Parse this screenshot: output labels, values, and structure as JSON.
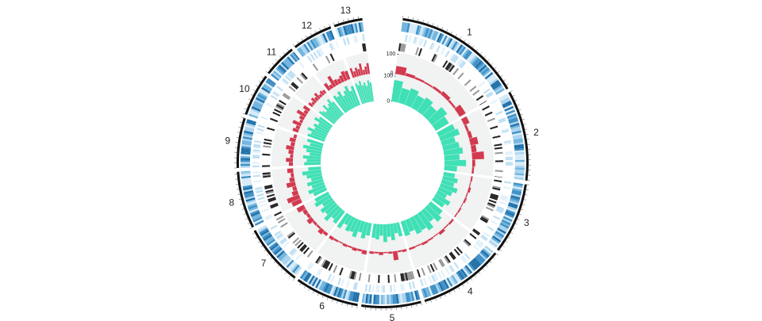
{
  "chart_data": {
    "type": "circos",
    "chromosomes": [
      "1",
      "2",
      "3",
      "4",
      "5",
      "6",
      "7",
      "8",
      "9",
      "10",
      "11",
      "12",
      "13"
    ],
    "lengths": [
      54,
      38,
      30,
      36,
      25,
      27,
      26,
      24,
      21,
      18,
      14,
      17,
      12
    ],
    "series": [
      {
        "color": "#d23a4f",
        "ylim": [
          0,
          100
        ],
        "yticks": [
          0,
          100
        ],
        "values": [
          [
            40,
            15,
            10,
            8,
            12,
            20,
            10,
            35
          ],
          [
            30,
            12,
            18,
            40,
            25,
            60,
            15,
            10
          ],
          [
            8,
            5,
            12,
            6,
            10,
            4,
            8,
            6
          ],
          [
            10,
            6,
            15,
            5,
            8,
            12,
            6,
            10
          ],
          [
            12,
            8,
            45,
            10,
            6,
            15,
            8,
            12
          ],
          [
            20,
            10,
            15,
            8,
            12,
            6,
            10,
            15
          ],
          [
            15,
            25,
            10,
            12,
            30,
            15,
            20,
            40
          ],
          [
            50,
            65,
            30,
            20,
            45,
            25,
            15,
            30
          ],
          [
            20,
            35,
            15,
            25,
            40,
            20,
            30,
            15
          ],
          [
            30,
            20,
            45,
            15,
            25,
            50,
            20,
            35
          ],
          [
            25,
            15,
            30,
            20,
            35,
            15,
            25,
            20
          ],
          [
            40,
            20,
            60,
            30,
            25,
            35,
            50,
            45
          ],
          [
            50,
            30,
            45,
            35,
            60,
            25,
            40,
            55
          ]
        ]
      },
      {
        "color": "#3fe0b5",
        "ylim": [
          0,
          100
        ],
        "yticks": [
          0,
          100
        ],
        "values": [
          [
            85,
            60,
            70,
            55,
            65,
            50,
            75,
            60
          ],
          [
            70,
            80,
            55,
            65,
            75,
            60,
            85,
            50
          ],
          [
            45,
            60,
            50,
            70,
            55,
            40,
            65,
            50
          ],
          [
            60,
            75,
            55,
            80,
            65,
            70,
            50,
            60
          ],
          [
            55,
            40,
            65,
            50,
            70,
            45,
            60,
            55
          ],
          [
            50,
            65,
            45,
            70,
            55,
            60,
            40,
            65
          ],
          [
            60,
            50,
            75,
            55,
            65,
            45,
            70,
            60
          ],
          [
            55,
            70,
            50,
            65,
            45,
            60,
            75,
            50
          ],
          [
            65,
            55,
            70,
            45,
            60,
            75,
            50,
            65
          ],
          [
            70,
            60,
            80,
            55,
            65,
            50,
            75,
            60
          ],
          [
            75,
            65,
            55,
            80,
            60,
            70,
            85,
            65
          ],
          [
            80,
            70,
            85,
            60,
            75,
            90,
            65,
            80
          ],
          [
            85,
            75,
            90,
            70,
            80,
            65,
            85,
            75
          ]
        ]
      }
    ]
  }
}
